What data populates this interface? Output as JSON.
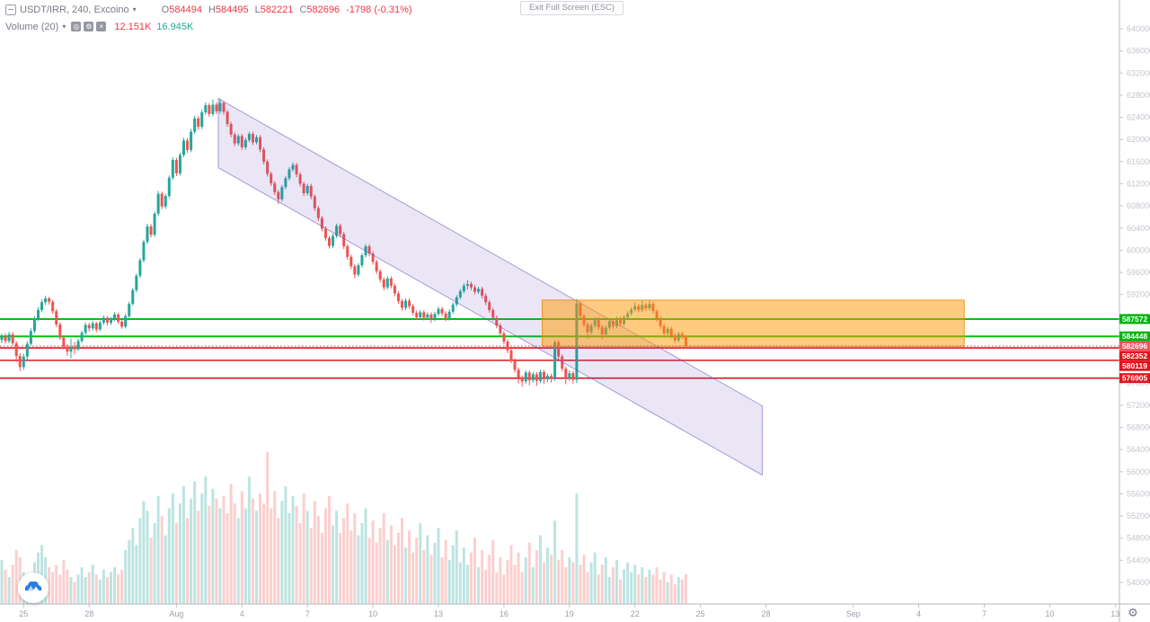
{
  "header": {
    "symbol_title": "USDT/IRR, 240, Excoino",
    "ohlc": {
      "o_label": "O",
      "o": "584494",
      "h_label": "H",
      "h": "584495",
      "l_label": "L",
      "l": "582221",
      "c_label": "C",
      "c": "582696",
      "change": "-1798 (-0.31%)"
    },
    "volume_indicator": {
      "label": "Volume (20)",
      "value": "12.151K",
      "ma_value": "16.945K",
      "hide_icon": "◎",
      "settings_icon": "⚙",
      "remove_icon": "×"
    }
  },
  "fullscreen_button": {
    "label": "Exit Full Screen (ESC)"
  },
  "footer": {
    "gear_icon": "⚙"
  },
  "colors": {
    "up": "#26a69a",
    "down": "#ef5350",
    "vol_up": "rgba(38,166,154,0.30)",
    "vol_down": "rgba(239,83,80,0.28)",
    "channel_fill": "rgba(104,81,189,0.14)",
    "channel_stroke": "rgba(104,81,189,0.55)",
    "box_fill": "rgba(255,152,0,0.50)",
    "box_stroke": "rgba(235,140,10,0.85)",
    "green_line": "#00c40e",
    "red_line": "#e1141c",
    "current_line": "#f23645",
    "green_label_bg": "#00b50f",
    "red_label_bg": "#e1141c",
    "current_label_bg": "#f0545c",
    "axis_text": "#c2c5cc",
    "time_text": "#9aa0aa",
    "axis_line": "#b5b8bf",
    "legend_text": "#787b86",
    "value_red": "#f23645",
    "value_teal": "#26a69a"
  },
  "chart_data": {
    "type": "candlestick+volume",
    "symbol": "USDT/IRR",
    "interval": "240",
    "exchange": "Excoino",
    "last_price": 582696,
    "change": -1798,
    "change_pct": -0.31,
    "price_axis": {
      "min": 540000,
      "max": 640000,
      "tick_step": 4000
    },
    "price_unit": 1000,
    "volume_unit": "K",
    "h_lines": [
      {
        "price": 587572,
        "label": "587572",
        "color": "green"
      },
      {
        "price": 584448,
        "label": "584448",
        "color": "green"
      },
      {
        "price": 582696,
        "label": "582696",
        "color": "red",
        "style": "dotted",
        "role": "current"
      },
      {
        "price": 582352,
        "label": "582352",
        "color": "red"
      },
      {
        "price": 580119,
        "label": "580119",
        "color": "red"
      },
      {
        "price": 576905,
        "label": "576905",
        "color": "red"
      }
    ],
    "channel": {
      "start_index": 59.5,
      "end_index": 209,
      "top_start_price": 627400,
      "top_end_price": 571900,
      "bottom_start_price": 614900,
      "bottom_end_price": 559400
    },
    "box": {
      "start_index": 148.5,
      "end_index": 264.5,
      "top_price": 591000,
      "bottom_price": 582650
    },
    "time_axis_labels": [
      {
        "label": "25",
        "index": 6
      },
      {
        "label": "28",
        "index": 24
      },
      {
        "label": "Aug",
        "index": 48
      },
      {
        "label": "4",
        "index": 66
      },
      {
        "label": "7",
        "index": 84
      },
      {
        "label": "10",
        "index": 102
      },
      {
        "label": "13",
        "index": 120
      },
      {
        "label": "16",
        "index": 138
      },
      {
        "label": "19",
        "index": 156
      },
      {
        "label": "22",
        "index": 174
      },
      {
        "label": "25",
        "index": 192
      },
      {
        "label": "28",
        "index": 210
      },
      {
        "label": "Sep",
        "index": 234
      },
      {
        "label": "4",
        "index": 252
      },
      {
        "label": "7",
        "index": 270
      },
      {
        "label": "10",
        "index": 288
      },
      {
        "label": "13",
        "index": 306
      }
    ],
    "candles": [
      [
        583.8,
        584.9,
        583.2,
        584.4
      ],
      [
        584.4,
        585.0,
        583.1,
        583.6
      ],
      [
        583.6,
        585.3,
        583.2,
        584.8
      ],
      [
        584.8,
        585.2,
        582.8,
        583.2
      ],
      [
        583.2,
        583.6,
        579.8,
        580.9
      ],
      [
        580.9,
        581.4,
        578.2,
        578.9
      ],
      [
        578.9,
        581.3,
        578.4,
        580.8
      ],
      [
        580.8,
        583.6,
        580.2,
        583.1
      ],
      [
        583.1,
        585.9,
        582.8,
        585.4
      ],
      [
        585.4,
        588.1,
        585.0,
        587.6
      ],
      [
        587.6,
        589.7,
        587.2,
        589.2
      ],
      [
        589.2,
        591.1,
        588.8,
        590.6
      ],
      [
        590.6,
        591.8,
        590.1,
        591.3
      ],
      [
        591.3,
        591.6,
        590.2,
        590.7
      ],
      [
        590.7,
        591.0,
        588.5,
        589.0
      ],
      [
        589.0,
        589.4,
        586.1,
        586.6
      ],
      [
        586.6,
        587.0,
        583.8,
        584.2
      ],
      [
        584.2,
        584.6,
        582.1,
        582.6
      ],
      [
        582.6,
        583.1,
        580.9,
        581.7
      ],
      [
        581.7,
        584.0,
        580.5,
        582.6
      ],
      [
        582.6,
        583.4,
        581.2,
        582.1
      ],
      [
        582.1,
        584.0,
        581.8,
        583.6
      ],
      [
        583.6,
        585.5,
        583.2,
        585.1
      ],
      [
        585.1,
        586.9,
        584.7,
        586.5
      ],
      [
        586.5,
        586.9,
        585.3,
        585.9
      ],
      [
        585.9,
        587.2,
        585.5,
        586.8
      ],
      [
        586.8,
        587.1,
        585.2,
        585.7
      ],
      [
        585.7,
        587.3,
        585.4,
        586.9
      ],
      [
        586.9,
        588.2,
        586.5,
        587.8
      ],
      [
        587.8,
        588.1,
        586.4,
        586.9
      ],
      [
        586.9,
        587.9,
        586.5,
        587.6
      ],
      [
        587.6,
        588.8,
        587.2,
        588.4
      ],
      [
        588.4,
        588.7,
        586.7,
        587.1
      ],
      [
        587.1,
        587.5,
        585.8,
        586.2
      ],
      [
        586.2,
        588.5,
        585.9,
        588.1
      ],
      [
        588.1,
        590.7,
        587.8,
        590.3
      ],
      [
        590.3,
        593.2,
        590.0,
        592.8
      ],
      [
        592.8,
        595.8,
        592.4,
        595.4
      ],
      [
        595.4,
        598.6,
        595.0,
        598.2
      ],
      [
        598.2,
        601.9,
        597.8,
        601.5
      ],
      [
        601.5,
        604.8,
        601.1,
        604.3
      ],
      [
        604.3,
        604.7,
        602.3,
        602.8
      ],
      [
        602.8,
        607.0,
        602.4,
        606.6
      ],
      [
        606.6,
        610.7,
        606.2,
        610.2
      ],
      [
        610.2,
        610.6,
        607.4,
        607.9
      ],
      [
        607.9,
        610.2,
        607.5,
        609.8
      ],
      [
        609.8,
        613.5,
        609.4,
        613.1
      ],
      [
        613.1,
        616.8,
        612.7,
        616.3
      ],
      [
        616.3,
        616.7,
        613.4,
        613.9
      ],
      [
        613.9,
        617.6,
        613.5,
        617.2
      ],
      [
        617.2,
        620.3,
        616.8,
        619.8
      ],
      [
        619.8,
        620.2,
        617.6,
        618.1
      ],
      [
        618.1,
        621.9,
        617.7,
        621.4
      ],
      [
        621.4,
        624.3,
        621.0,
        623.8
      ],
      [
        623.8,
        624.2,
        621.8,
        622.3
      ],
      [
        622.3,
        625.4,
        621.9,
        624.9
      ],
      [
        624.9,
        626.7,
        624.5,
        626.2
      ],
      [
        626.2,
        626.6,
        624.1,
        624.6
      ],
      [
        624.6,
        627.2,
        624.2,
        626.3
      ],
      [
        626.3,
        626.7,
        624.6,
        625.1
      ],
      [
        625.1,
        627.4,
        624.7,
        626.6
      ],
      [
        626.6,
        626.9,
        624.5,
        625.0
      ],
      [
        625.0,
        625.3,
        622.3,
        622.8
      ],
      [
        622.8,
        623.2,
        620.4,
        620.9
      ],
      [
        620.9,
        621.3,
        618.8,
        619.3
      ],
      [
        619.3,
        621.0,
        618.9,
        620.6
      ],
      [
        620.6,
        621.0,
        618.1,
        618.6
      ],
      [
        618.6,
        620.3,
        618.2,
        619.9
      ],
      [
        619.9,
        621.4,
        619.5,
        621.0
      ],
      [
        621.0,
        621.4,
        619.0,
        619.5
      ],
      [
        619.5,
        620.8,
        619.1,
        620.4
      ],
      [
        620.4,
        620.8,
        617.7,
        618.2
      ],
      [
        618.2,
        618.6,
        615.5,
        616.0
      ],
      [
        616.0,
        616.4,
        613.3,
        613.8
      ],
      [
        613.8,
        614.2,
        611.6,
        612.1
      ],
      [
        612.1,
        612.5,
        610.0,
        610.5
      ],
      [
        610.5,
        610.9,
        608.3,
        609.2
      ],
      [
        609.2,
        611.8,
        608.8,
        611.4
      ],
      [
        611.4,
        613.4,
        611.0,
        613.0
      ],
      [
        613.0,
        615.0,
        612.6,
        614.6
      ],
      [
        614.6,
        615.9,
        614.2,
        615.4
      ],
      [
        615.4,
        615.8,
        613.2,
        613.7
      ],
      [
        613.7,
        614.1,
        611.5,
        612.0
      ],
      [
        612.0,
        612.4,
        609.8,
        610.3
      ],
      [
        610.3,
        612.0,
        609.9,
        611.6
      ],
      [
        611.6,
        612.0,
        609.2,
        609.7
      ],
      [
        609.7,
        610.1,
        607.1,
        607.6
      ],
      [
        607.6,
        608.0,
        605.3,
        605.8
      ],
      [
        605.8,
        606.2,
        603.4,
        603.9
      ],
      [
        603.9,
        604.3,
        601.7,
        602.2
      ],
      [
        602.2,
        602.6,
        600.3,
        600.8
      ],
      [
        600.8,
        603.0,
        600.4,
        602.6
      ],
      [
        602.6,
        604.8,
        602.2,
        604.4
      ],
      [
        604.4,
        604.8,
        602.4,
        602.9
      ],
      [
        602.9,
        603.3,
        600.2,
        600.7
      ],
      [
        600.7,
        601.1,
        598.3,
        598.8
      ],
      [
        598.8,
        599.2,
        596.6,
        597.1
      ],
      [
        597.1,
        597.5,
        594.9,
        595.6
      ],
      [
        595.6,
        597.7,
        595.2,
        597.3
      ],
      [
        597.3,
        599.5,
        596.9,
        599.1
      ],
      [
        599.1,
        601.1,
        598.7,
        600.7
      ],
      [
        600.7,
        601.1,
        598.9,
        599.4
      ],
      [
        599.4,
        599.8,
        597.4,
        597.9
      ],
      [
        597.9,
        598.3,
        595.7,
        596.2
      ],
      [
        596.2,
        596.6,
        594.2,
        594.7
      ],
      [
        594.7,
        595.1,
        592.8,
        593.3
      ],
      [
        593.3,
        595.3,
        592.9,
        594.9
      ],
      [
        594.9,
        595.3,
        593.1,
        593.6
      ],
      [
        593.6,
        594.0,
        591.7,
        592.2
      ],
      [
        592.2,
        592.6,
        590.3,
        590.8
      ],
      [
        590.8,
        591.2,
        589.1,
        589.6
      ],
      [
        589.6,
        591.3,
        589.2,
        590.9
      ],
      [
        590.9,
        591.3,
        589.4,
        589.9
      ],
      [
        589.9,
        590.3,
        588.2,
        588.7
      ],
      [
        588.7,
        589.1,
        587.4,
        587.9
      ],
      [
        587.9,
        589.2,
        587.5,
        588.8
      ],
      [
        588.8,
        589.2,
        587.3,
        587.8
      ],
      [
        587.8,
        588.8,
        587.4,
        588.4
      ],
      [
        588.4,
        588.8,
        586.9,
        587.6
      ],
      [
        587.6,
        588.9,
        587.2,
        588.5
      ],
      [
        588.5,
        589.8,
        588.1,
        589.4
      ],
      [
        589.4,
        589.8,
        588.1,
        588.6
      ],
      [
        588.6,
        589.0,
        587.2,
        587.7
      ],
      [
        587.7,
        589.3,
        587.3,
        588.9
      ],
      [
        588.9,
        590.6,
        588.5,
        590.2
      ],
      [
        590.2,
        591.9,
        589.8,
        591.5
      ],
      [
        591.5,
        593.0,
        591.1,
        592.6
      ],
      [
        592.6,
        594.0,
        592.2,
        593.6
      ],
      [
        593.6,
        594.6,
        592.9,
        593.9
      ],
      [
        593.9,
        594.3,
        592.8,
        593.3
      ],
      [
        593.3,
        593.7,
        592.0,
        592.5
      ],
      [
        592.5,
        593.4,
        592.1,
        593.0
      ],
      [
        593.0,
        593.4,
        591.3,
        591.8
      ],
      [
        591.8,
        592.2,
        590.1,
        590.6
      ],
      [
        590.6,
        591.0,
        588.7,
        589.2
      ],
      [
        589.2,
        589.6,
        587.3,
        587.8
      ],
      [
        587.8,
        588.2,
        585.9,
        586.4
      ],
      [
        586.4,
        586.8,
        584.5,
        585.0
      ],
      [
        585.0,
        585.4,
        583.0,
        583.5
      ],
      [
        583.5,
        583.9,
        581.4,
        581.9
      ],
      [
        581.9,
        582.3,
        579.6,
        580.1
      ],
      [
        580.1,
        580.5,
        577.9,
        578.4
      ],
      [
        578.4,
        578.8,
        575.9,
        577.0
      ],
      [
        577.0,
        577.4,
        575.4,
        576.3
      ],
      [
        576.3,
        578.3,
        575.9,
        577.9
      ],
      [
        577.9,
        578.3,
        575.6,
        576.5
      ],
      [
        576.5,
        578.0,
        576.1,
        577.6
      ],
      [
        577.6,
        578.0,
        575.5,
        576.4
      ],
      [
        576.4,
        578.4,
        576.0,
        578.0
      ],
      [
        578.0,
        578.4,
        575.8,
        576.7
      ],
      [
        576.7,
        577.7,
        576.2,
        577.3
      ],
      [
        577.3,
        577.7,
        576.1,
        576.9
      ],
      [
        576.9,
        583.8,
        576.4,
        583.4
      ],
      [
        583.4,
        583.8,
        580.3,
        580.8
      ],
      [
        580.8,
        581.2,
        578.1,
        578.6
      ],
      [
        578.6,
        579.0,
        575.8,
        576.9
      ],
      [
        576.9,
        578.3,
        576.4,
        577.8
      ],
      [
        577.8,
        578.2,
        575.9,
        576.6
      ],
      [
        576.6,
        591.2,
        576.0,
        590.4
      ],
      [
        590.4,
        590.8,
        587.7,
        588.1
      ],
      [
        588.1,
        588.5,
        586.1,
        586.6
      ],
      [
        586.6,
        587.0,
        584.0,
        585.2
      ],
      [
        585.2,
        586.8,
        584.8,
        586.4
      ],
      [
        586.4,
        587.9,
        586.0,
        587.5
      ],
      [
        587.5,
        587.9,
        585.6,
        586.1
      ],
      [
        586.1,
        586.5,
        583.9,
        584.8
      ],
      [
        584.8,
        586.4,
        584.4,
        586.0
      ],
      [
        586.0,
        587.6,
        585.6,
        587.2
      ],
      [
        587.2,
        587.6,
        585.8,
        586.3
      ],
      [
        586.3,
        588.0,
        585.9,
        587.6
      ],
      [
        587.6,
        588.0,
        586.2,
        586.7
      ],
      [
        586.7,
        588.3,
        586.3,
        587.9
      ],
      [
        587.9,
        589.0,
        587.5,
        588.6
      ],
      [
        588.6,
        589.7,
        588.2,
        589.3
      ],
      [
        589.3,
        590.6,
        588.9,
        589.9
      ],
      [
        589.9,
        590.3,
        588.8,
        589.2
      ],
      [
        589.2,
        590.9,
        588.8,
        590.1
      ],
      [
        590.1,
        590.5,
        589.0,
        589.5
      ],
      [
        589.5,
        591.0,
        589.1,
        590.3
      ],
      [
        590.3,
        590.7,
        588.5,
        589.0
      ],
      [
        589.0,
        589.4,
        587.2,
        587.7
      ],
      [
        587.7,
        588.1,
        585.8,
        586.3
      ],
      [
        586.3,
        586.7,
        584.2,
        585.0
      ],
      [
        585.0,
        586.2,
        584.6,
        585.8
      ],
      [
        585.8,
        586.2,
        584.1,
        584.6
      ],
      [
        584.6,
        585.0,
        583.2,
        583.7
      ],
      [
        583.7,
        585.3,
        583.3,
        584.9
      ],
      [
        584.9,
        585.3,
        584.0,
        584.5
      ],
      [
        584.5,
        584.5,
        582.2,
        582.7
      ]
    ],
    "volumes": [
      18,
      14,
      11,
      16,
      22,
      19,
      13,
      10,
      12,
      17,
      21,
      24,
      19,
      15,
      13,
      16,
      12,
      18,
      14,
      11,
      9,
      12,
      15,
      11,
      13,
      16,
      12,
      10,
      14,
      11,
      13,
      15,
      12,
      14,
      22,
      26,
      31,
      24,
      35,
      42,
      38,
      27,
      33,
      44,
      36,
      28,
      39,
      45,
      33,
      41,
      48,
      35,
      43,
      50,
      38,
      45,
      52,
      40,
      47,
      43,
      39,
      44,
      37,
      49,
      41,
      35,
      46,
      39,
      52,
      43,
      38,
      45,
      41,
      62,
      39,
      46,
      35,
      42,
      48,
      37,
      44,
      40,
      33,
      45,
      38,
      31,
      42,
      36,
      29,
      39,
      44,
      32,
      38,
      29,
      35,
      41,
      30,
      37,
      28,
      33,
      39,
      27,
      34,
      25,
      31,
      37,
      26,
      32,
      24,
      29,
      35,
      23,
      30,
      21,
      27,
      33,
      22,
      28,
      20,
      25,
      31,
      19,
      26,
      18,
      24,
      30,
      17,
      23,
      16,
      21,
      27,
      15,
      22,
      14,
      20,
      26,
      13,
      19,
      12,
      18,
      24,
      16,
      21,
      13,
      19,
      25,
      15,
      22,
      28,
      17,
      23,
      20,
      34,
      18,
      22,
      15,
      19,
      17,
      45,
      16,
      20,
      13,
      17,
      21,
      12,
      16,
      19,
      11,
      15,
      18,
      10,
      14,
      17,
      13,
      16,
      12,
      15,
      11,
      14,
      12,
      15,
      10,
      13,
      9,
      12,
      8,
      11,
      10,
      12.151
    ]
  }
}
